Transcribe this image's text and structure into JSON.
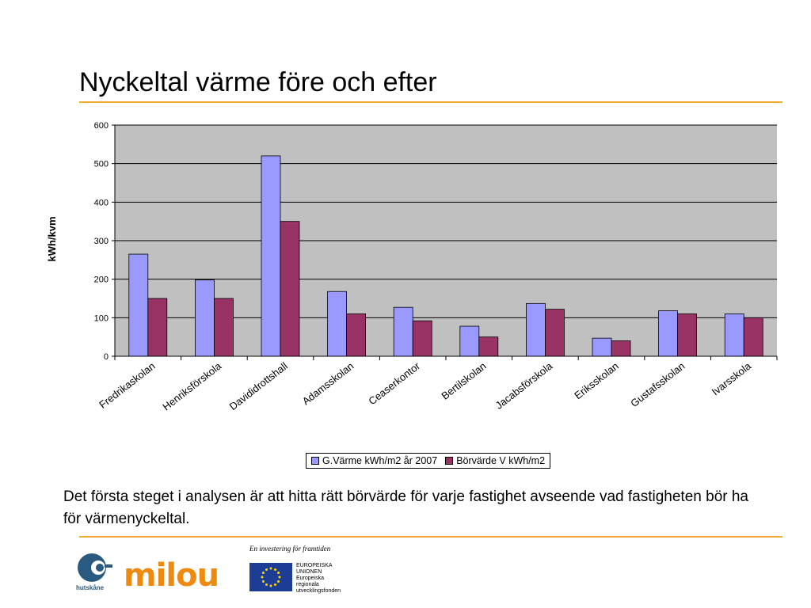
{
  "title": "Nyckeltal värme före och efter",
  "description": "Det första steget i analysen är att hitta rätt börvärde för varje fastighet avseende vad fastigheten bör ha för värmenyckeltal.",
  "chart_data": {
    "type": "bar",
    "title": "",
    "xlabel": "",
    "ylabel": "kWh/kvm",
    "ylim": [
      0,
      600
    ],
    "yticks": [
      0,
      100,
      200,
      300,
      400,
      500,
      600
    ],
    "grid": true,
    "legend_position": "bottom",
    "categories": [
      "Fredrikaskolan",
      "Henriksförskola",
      "Davididrottshall",
      "Adamsskolan",
      "Ceaserkontor",
      "Bertilskolan",
      "Jacabsförskola",
      "Eriksskolan",
      "Gustafsskolan",
      "Ivarsskola"
    ],
    "series": [
      {
        "name": "G.Värme kWh/m2 år 2007",
        "color": "#9999ff",
        "values": [
          265,
          198,
          520,
          168,
          127,
          78,
          137,
          47,
          118,
          110
        ]
      },
      {
        "name": "Börvärde V kWh/m2",
        "color": "#993366",
        "values": [
          150,
          150,
          350,
          110,
          92,
          50,
          122,
          40,
          110,
          100
        ]
      }
    ],
    "plot_background": "#c0c0c0"
  },
  "footer": {
    "logo_hutskane": "hutskåne",
    "logo_milou": "milou",
    "eu_tagline": "En investering för framtiden",
    "eu_lines": [
      "EUROPEISKA",
      "UNIONEN",
      "Europeiska",
      "regionala",
      "utvecklingsfonden"
    ]
  },
  "colors": {
    "accent_rule": "#f0a830"
  }
}
